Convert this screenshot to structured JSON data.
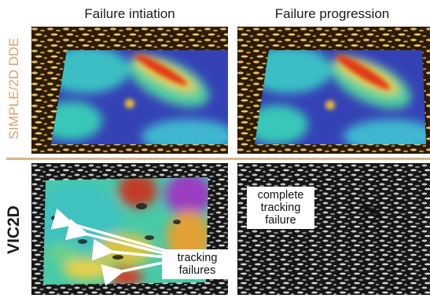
{
  "columns": [
    "Failure intiation",
    "Failure progression"
  ],
  "rows": [
    "SIMPLE/2D DDE",
    "VIC2D"
  ],
  "annotations": {
    "tracking_failures": "tracking failures",
    "complete_tracking_failure": "complete tracking failure"
  },
  "colors": {
    "row1_label": "#d9a070",
    "divider": "#d9b48e",
    "speckle_gold": "#e0b35a",
    "speckle_gray": "#bfbfbf",
    "map_low": "#2b3bb8",
    "map_mid": "#35c4c0",
    "map_high": "#e03010"
  },
  "arrows": {
    "count": 4,
    "color": "#ffffff"
  }
}
